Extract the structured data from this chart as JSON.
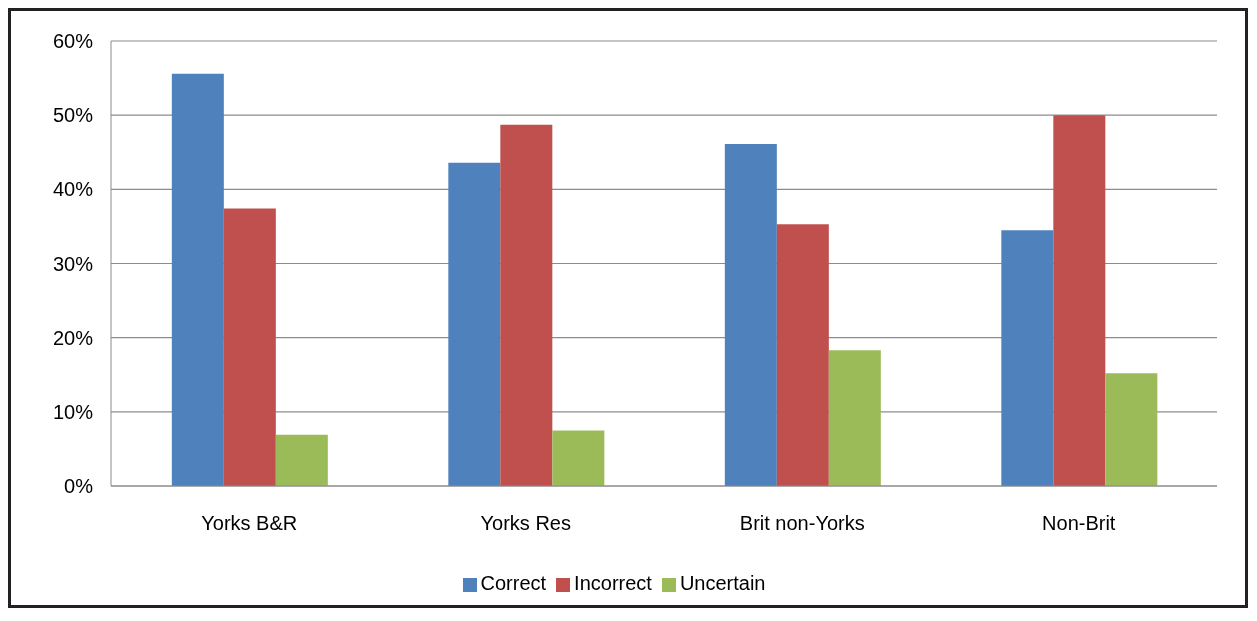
{
  "chart_data": {
    "type": "bar",
    "categories": [
      "Yorks B&R",
      "Yorks Res",
      "Brit non-Yorks",
      "Non-Brit"
    ],
    "series": [
      {
        "name": "Correct",
        "color": "#4f81bd",
        "values": [
          55.6,
          43.6,
          46.1,
          34.5
        ]
      },
      {
        "name": "Incorrect",
        "color": "#c0504d",
        "values": [
          37.4,
          48.7,
          35.3,
          50.0
        ]
      },
      {
        "name": "Uncertain",
        "color": "#9bbb59",
        "values": [
          6.9,
          7.5,
          18.3,
          15.2
        ]
      }
    ],
    "ylim": [
      0,
      60
    ],
    "yticks": [
      {
        "value": 0,
        "label": "0%"
      },
      {
        "value": 10,
        "label": "10%"
      },
      {
        "value": 20,
        "label": "20%"
      },
      {
        "value": 30,
        "label": "30%"
      },
      {
        "value": 40,
        "label": "40%"
      },
      {
        "value": 50,
        "label": "50%"
      },
      {
        "value": 60,
        "label": "60%"
      }
    ],
    "grid": "y",
    "legend": "bottom"
  }
}
